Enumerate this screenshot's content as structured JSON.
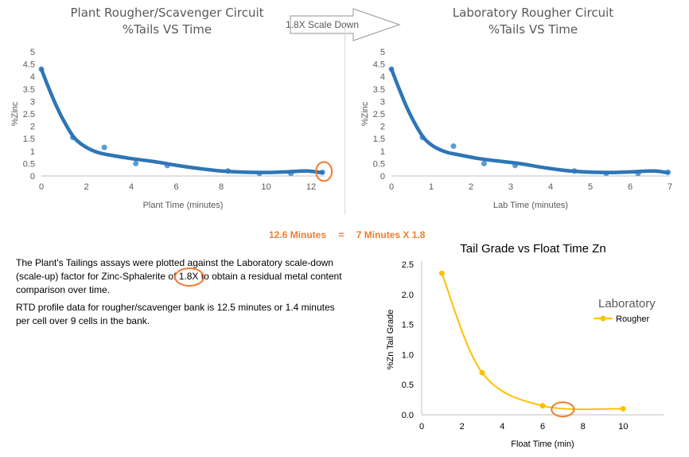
{
  "arrow_label": "1.8X Scale Down",
  "equation": {
    "left": "12.6 Minutes",
    "eq": "=",
    "right": "7 Minutes X 1.8"
  },
  "text": {
    "p1_a": "The Plant's Tailings assays were plotted against the Laboratory scale-down (scale-up) factor for Zinc-Sphalerite of ",
    "p1_hl": "1.8X",
    "p1_b": " to obtain a residual metal content comparison over time.",
    "p2": "RTD profile data for rougher/scavenger bank is 12.5 minutes or 1.4 minutes per cell over 9 cells in the bank."
  },
  "colors": {
    "series_blue": "#2e75b6",
    "point_blue": "#5b9bd5",
    "orange": "#ed7d31",
    "gold": "#ffc000",
    "grid": "#d9d9d9"
  },
  "chart_data": [
    {
      "type": "scatter",
      "title": "Plant Rougher/Scavenger Circuit",
      "subtitle": "%Tails VS Time",
      "xlabel": "Plant Time (minutes)",
      "ylabel": "%Zinc",
      "xlim": [
        0,
        12.6
      ],
      "ylim": [
        0,
        5
      ],
      "xticks": [
        0,
        2,
        4,
        6,
        8,
        10,
        12
      ],
      "yticks": [
        0,
        0.5,
        1,
        1.5,
        2,
        2.5,
        3,
        3.5,
        4,
        4.5,
        5
      ],
      "grid": false,
      "points": [
        [
          0,
          4.3
        ],
        [
          1.4,
          1.55
        ],
        [
          2.8,
          1.15
        ],
        [
          4.2,
          0.5
        ],
        [
          5.6,
          0.42
        ],
        [
          8.3,
          0.2
        ],
        [
          9.7,
          0.1
        ],
        [
          11.1,
          0.1
        ],
        [
          12.5,
          0.15
        ]
      ],
      "trend": [
        [
          0,
          4.3
        ],
        [
          0.3,
          3.6
        ],
        [
          0.7,
          2.75
        ],
        [
          1.1,
          2.05
        ],
        [
          1.5,
          1.5
        ],
        [
          2,
          1.15
        ],
        [
          2.5,
          0.95
        ],
        [
          3,
          0.85
        ],
        [
          4,
          0.7
        ],
        [
          5,
          0.58
        ],
        [
          6,
          0.43
        ],
        [
          7,
          0.3
        ],
        [
          8,
          0.2
        ],
        [
          9,
          0.15
        ],
        [
          10,
          0.14
        ],
        [
          11,
          0.17
        ],
        [
          11.8,
          0.2
        ],
        [
          12.5,
          0.13
        ]
      ],
      "highlight": [
        12.5,
        0.15
      ]
    },
    {
      "type": "scatter",
      "title": "Laboratory Rougher Circuit",
      "subtitle": "%Tails VS Time",
      "xlabel": "Lab Time (minutes)",
      "ylabel": "%Zinc",
      "xlim": [
        0,
        7
      ],
      "ylim": [
        0,
        5
      ],
      "xticks": [
        0,
        1,
        2,
        3,
        4,
        5,
        6,
        7
      ],
      "yticks": [
        0,
        0.5,
        1,
        1.5,
        2,
        2.5,
        3,
        3.5,
        4,
        4.5,
        5
      ],
      "grid": false,
      "points": [
        [
          0,
          4.3
        ],
        [
          0.78,
          1.55
        ],
        [
          1.56,
          1.2
        ],
        [
          2.33,
          0.5
        ],
        [
          3.11,
          0.42
        ],
        [
          4.6,
          0.2
        ],
        [
          5.4,
          0.1
        ],
        [
          6.2,
          0.1
        ],
        [
          6.95,
          0.15
        ]
      ],
      "trend": [
        [
          0,
          4.3
        ],
        [
          0.17,
          3.6
        ],
        [
          0.39,
          2.75
        ],
        [
          0.61,
          2.05
        ],
        [
          0.83,
          1.5
        ],
        [
          1.1,
          1.15
        ],
        [
          1.4,
          0.95
        ],
        [
          1.7,
          0.85
        ],
        [
          2.2,
          0.7
        ],
        [
          2.8,
          0.58
        ],
        [
          3.3,
          0.48
        ],
        [
          3.9,
          0.32
        ],
        [
          4.5,
          0.2
        ],
        [
          5,
          0.15
        ],
        [
          5.6,
          0.14
        ],
        [
          6.1,
          0.17
        ],
        [
          6.6,
          0.2
        ],
        [
          6.95,
          0.13
        ]
      ]
    },
    {
      "type": "line",
      "title": "Tail Grade vs Float Time Zn",
      "xlabel": "Float Time (min)",
      "ylabel": "%Zn Tail Grade",
      "xlim": [
        0,
        12
      ],
      "ylim": [
        0,
        2.5
      ],
      "xticks": [
        0,
        2,
        4,
        6,
        8,
        10
      ],
      "yticks": [
        0,
        0.5,
        1,
        1.5,
        2,
        2.5
      ],
      "grid": false,
      "legend_title": "Laboratory",
      "series": [
        {
          "name": "Rougher",
          "x": [
            1,
            3,
            6,
            10
          ],
          "y": [
            2.35,
            0.7,
            0.15,
            0.1
          ]
        }
      ],
      "highlight": [
        7,
        0.09
      ]
    }
  ]
}
